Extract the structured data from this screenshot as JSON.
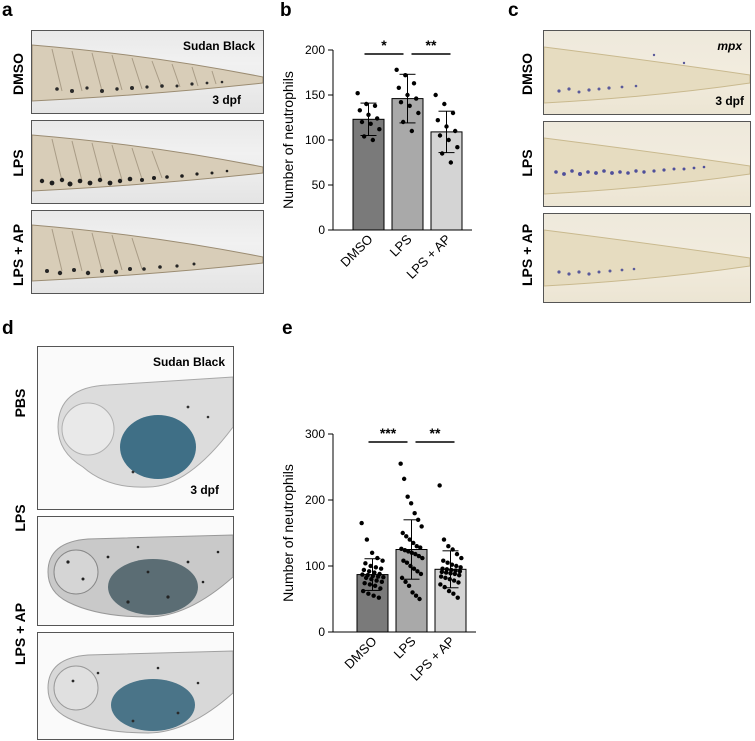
{
  "panels": {
    "a": {
      "letter": "a",
      "rows": [
        "DMSO",
        "LPS",
        "LPS + AP"
      ],
      "stain": "Sudan Black",
      "age": "3 dpf"
    },
    "b": {
      "letter": "b"
    },
    "c": {
      "letter": "c",
      "rows": [
        "DMSO",
        "LPS",
        "LPS + AP"
      ],
      "stain": "mpx",
      "age": "3 dpf"
    },
    "d": {
      "letter": "d",
      "rows": [
        "PBS",
        "LPS",
        "LPS + AP"
      ],
      "stain": "Sudan Black",
      "age": "3 dpf"
    },
    "e": {
      "letter": "e"
    }
  },
  "colors": {
    "bar_dark": "#7a7a7a",
    "bar_mid": "#a9a9a9",
    "bar_light": "#d4d4d4",
    "tail_pigment": "#2a2a2a",
    "mpx_stain": "#5a5a9a",
    "yolk_blue": "#3f6f86"
  },
  "chart_data": [
    {
      "type": "bar",
      "panel": "b",
      "categories": [
        "DMSO",
        "LPS",
        "LPS + AP"
      ],
      "values": [
        123,
        146,
        109
      ],
      "error": [
        18,
        27,
        23
      ],
      "ylabel": "Number of neutrophils",
      "ylim": [
        0,
        200
      ],
      "yticks": [
        0,
        50,
        100,
        150,
        200
      ],
      "points": [
        [
          152,
          140,
          138,
          133,
          128,
          124,
          120,
          118,
          112,
          104,
          100
        ],
        [
          178,
          172,
          163,
          158,
          150,
          146,
          142,
          138,
          130,
          120,
          110
        ],
        [
          150,
          140,
          130,
          122,
          115,
          110,
          105,
          100,
          92,
          85,
          75
        ]
      ],
      "significance": [
        {
          "from": 0,
          "to": 1,
          "label": "*"
        },
        {
          "from": 1,
          "to": 2,
          "label": "**"
        }
      ]
    },
    {
      "type": "bar",
      "panel": "e",
      "categories": [
        "DMSO",
        "LPS",
        "LPS + AP"
      ],
      "values": [
        87,
        125,
        95
      ],
      "error": [
        24,
        45,
        28
      ],
      "ylabel": "Number of neutrophils",
      "ylim": [
        0,
        300
      ],
      "yticks": [
        0,
        100,
        200,
        300
      ],
      "points": [
        [
          165,
          140,
          120,
          112,
          108,
          104,
          100,
          98,
          96,
          94,
          92,
          90,
          88,
          87,
          86,
          85,
          84,
          83,
          82,
          80,
          78,
          76,
          74,
          72,
          70,
          66,
          62,
          58,
          55,
          52
        ],
        [
          255,
          232,
          205,
          195,
          180,
          170,
          160,
          150,
          145,
          140,
          135,
          130,
          128,
          126,
          124,
          122,
          120,
          118,
          115,
          112,
          108,
          105,
          100,
          96,
          92,
          88,
          82,
          76,
          70,
          60,
          55,
          50
        ],
        [
          222,
          140,
          130,
          125,
          118,
          112,
          108,
          105,
          102,
          100,
          98,
          96,
          95,
          94,
          93,
          92,
          91,
          90,
          89,
          88,
          86,
          84,
          82,
          80,
          78,
          75,
          72,
          68,
          62,
          58,
          52
        ]
      ],
      "significance": [
        {
          "from": 0,
          "to": 1,
          "label": "***"
        },
        {
          "from": 1,
          "to": 2,
          "label": "**"
        }
      ]
    }
  ]
}
